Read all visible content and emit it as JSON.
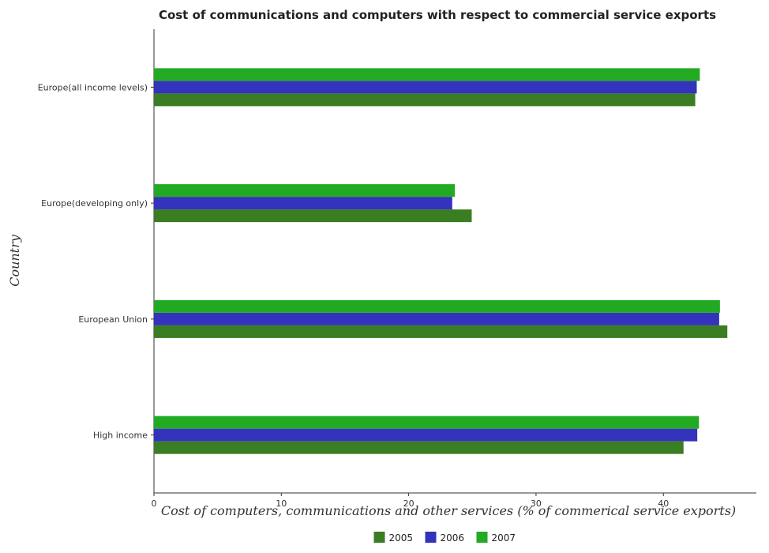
{
  "chart_data": {
    "type": "bar",
    "orientation": "horizontal",
    "title": "Cost of communications and computers with respect to commercial service exports",
    "xlabel": "Cost of computers, communications and other services (% of commerical service exports)",
    "ylabel": "Country",
    "categories": [
      "Europe(all income levels)",
      "Europe(developing only)",
      "European Union",
      "High income"
    ],
    "series": [
      {
        "name": "2005",
        "color": "#3a7d22",
        "values": [
          42.5,
          24.95,
          45.02,
          41.58
        ]
      },
      {
        "name": "2006",
        "color": "#3333bb",
        "values": [
          42.62,
          23.42,
          44.38,
          42.66
        ]
      },
      {
        "name": "2007",
        "color": "#22aa22",
        "values": [
          42.86,
          23.62,
          44.44,
          42.79
        ]
      }
    ],
    "xlim": [
      0,
      47.3
    ],
    "xticks": [
      0,
      10,
      20,
      30,
      40
    ],
    "grid": false,
    "legend": "bottom-center"
  }
}
